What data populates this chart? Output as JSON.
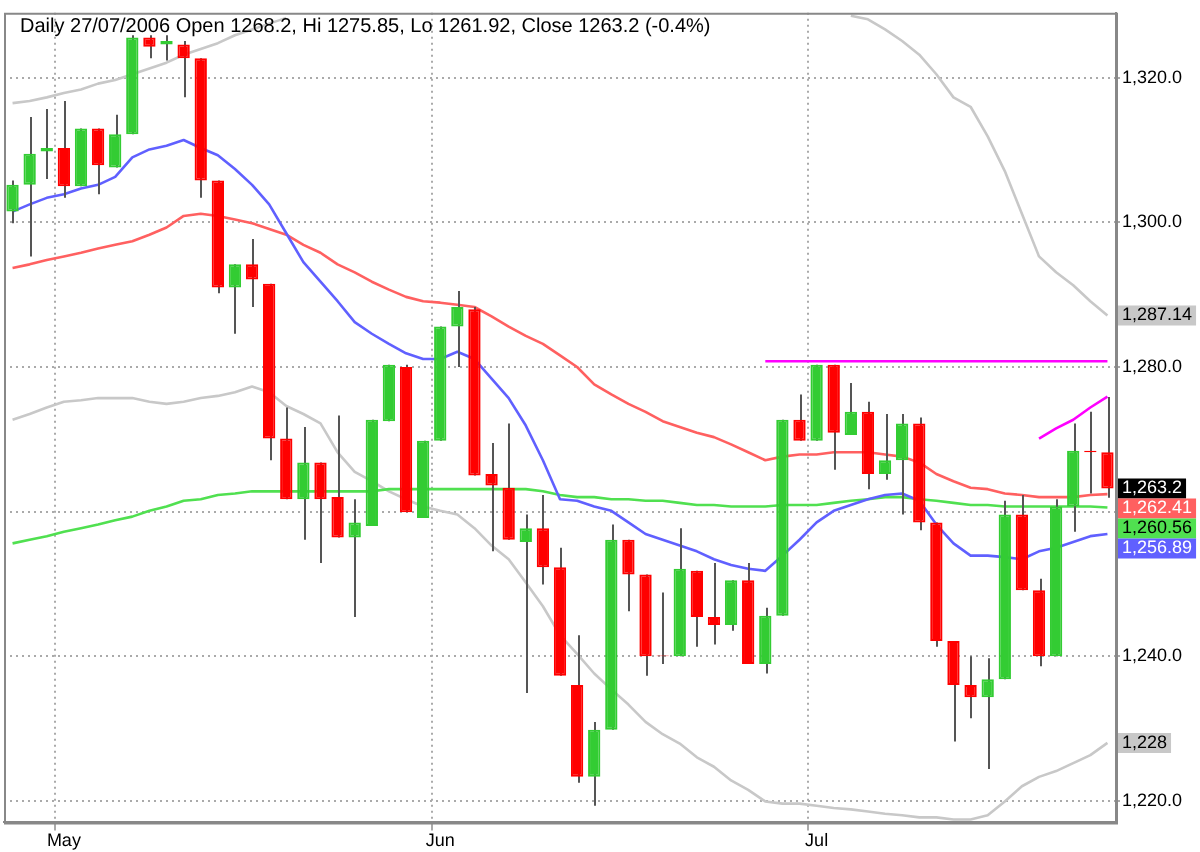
{
  "chart_data": {
    "type": "candlestick",
    "title": "Daily 27/07/2006 Open 1268.2, Hi 1275.85, Lo 1261.92, Close 1263.2 (-0.4%)",
    "categories": [
      null,
      null,
      null,
      "May",
      null,
      null,
      null,
      null,
      null,
      null,
      null,
      null,
      null,
      null,
      null,
      null,
      null,
      null,
      null,
      null,
      null,
      null,
      null,
      null,
      null,
      "Jun",
      null,
      null,
      null,
      null,
      null,
      null,
      null,
      null,
      null,
      null,
      null,
      null,
      null,
      null,
      null,
      null,
      null,
      null,
      null,
      null,
      null,
      "Jul",
      null,
      null,
      null,
      null,
      null,
      null,
      null,
      null,
      null,
      null,
      null,
      null,
      null,
      null,
      null,
      null,
      null
    ],
    "ohlc": [
      [
        1301.5,
        1305.8,
        1299.9,
        1305.2
      ],
      [
        1305.2,
        1314.6,
        1295.3,
        1309.5
      ],
      [
        1309.8,
        1315.7,
        1306.0,
        1310.3
      ],
      [
        1310.3,
        1316.8,
        1303.4,
        1305.0
      ],
      [
        1305.0,
        1313.0,
        1305.0,
        1313.0
      ],
      [
        1313.0,
        1313.0,
        1303.9,
        1307.9
      ],
      [
        1307.6,
        1314.9,
        1307.6,
        1312.2
      ],
      [
        1312.2,
        1325.9,
        1312.2,
        1325.6
      ],
      [
        1325.6,
        1325.9,
        1322.7,
        1324.3
      ],
      [
        1324.6,
        1325.9,
        1322.4,
        1325.1
      ],
      [
        1324.6,
        1325.1,
        1317.3,
        1322.7
      ],
      [
        1322.7,
        1322.7,
        1303.4,
        1305.8
      ],
      [
        1305.8,
        1305.8,
        1290.2,
        1291.0
      ],
      [
        1291.0,
        1294.2,
        1284.6,
        1294.2
      ],
      [
        1294.2,
        1297.7,
        1288.3,
        1292.1
      ],
      [
        1291.5,
        1291.5,
        1267.1,
        1270.1
      ],
      [
        1270.1,
        1274.4,
        1261.7,
        1261.7
      ],
      [
        1261.7,
        1271.7,
        1256.1,
        1266.8
      ],
      [
        1266.8,
        1266.8,
        1252.9,
        1261.7
      ],
      [
        1262.0,
        1273.3,
        1256.4,
        1256.4
      ],
      [
        1256.4,
        1261.7,
        1245.4,
        1258.5
      ],
      [
        1258.0,
        1272.7,
        1258.0,
        1272.7
      ],
      [
        1272.5,
        1280.3,
        1272.5,
        1280.3
      ],
      [
        1280.0,
        1280.3,
        1259.9,
        1259.9
      ],
      [
        1259.1,
        1269.8,
        1259.1,
        1269.8
      ],
      [
        1269.8,
        1285.6,
        1269.8,
        1285.6
      ],
      [
        1285.6,
        1290.5,
        1280.0,
        1288.3
      ],
      [
        1288.0,
        1288.3,
        1265.0,
        1265.0
      ],
      [
        1265.2,
        1269.5,
        1254.5,
        1263.6
      ],
      [
        1263.3,
        1272.2,
        1256.1,
        1256.1
      ],
      [
        1255.8,
        1259.6,
        1234.9,
        1257.7
      ],
      [
        1257.7,
        1262.3,
        1249.9,
        1252.3
      ],
      [
        1252.3,
        1255.0,
        1237.3,
        1237.3
      ],
      [
        1236.0,
        1242.9,
        1222.5,
        1223.3
      ],
      [
        1223.3,
        1230.9,
        1219.3,
        1229.8
      ],
      [
        1229.8,
        1258.2,
        1229.8,
        1256.1
      ],
      [
        1256.1,
        1256.1,
        1246.2,
        1251.3
      ],
      [
        1251.3,
        1251.3,
        1237.3,
        1240.0
      ],
      [
        1240.1,
        1248.8,
        1238.9,
        1240.0
      ],
      [
        1240.0,
        1257.7,
        1240.0,
        1252.1
      ],
      [
        1251.8,
        1251.8,
        1241.3,
        1245.4
      ],
      [
        1245.4,
        1252.9,
        1241.6,
        1244.3
      ],
      [
        1244.3,
        1250.5,
        1243.5,
        1250.5
      ],
      [
        1250.5,
        1252.9,
        1238.9,
        1238.9
      ],
      [
        1238.9,
        1246.7,
        1237.6,
        1245.6
      ],
      [
        1245.6,
        1272.7,
        1245.6,
        1272.7
      ],
      [
        1272.7,
        1276.2,
        1269.8,
        1269.8
      ],
      [
        1269.8,
        1280.3,
        1269.8,
        1280.3
      ],
      [
        1280.3,
        1280.3,
        1265.8,
        1270.9
      ],
      [
        1270.6,
        1277.8,
        1270.6,
        1273.8
      ],
      [
        1273.8,
        1275.2,
        1263.1,
        1265.2
      ],
      [
        1265.2,
        1273.5,
        1264.4,
        1267.1
      ],
      [
        1267.1,
        1273.5,
        1259.6,
        1272.2
      ],
      [
        1272.2,
        1273.0,
        1257.4,
        1258.5
      ],
      [
        1258.5,
        1258.5,
        1241.3,
        1242.1
      ],
      [
        1242.1,
        1242.1,
        1228.2,
        1236.0
      ],
      [
        1236.0,
        1240.0,
        1231.4,
        1234.3
      ],
      [
        1234.3,
        1239.7,
        1224.4,
        1236.8
      ],
      [
        1236.8,
        1261.5,
        1236.8,
        1259.6
      ],
      [
        1259.6,
        1262.3,
        1249.1,
        1249.1
      ],
      [
        1249.1,
        1250.7,
        1238.6,
        1240.0
      ],
      [
        1240.0,
        1261.7,
        1240.0,
        1260.7
      ],
      [
        1260.7,
        1272.2,
        1257.2,
        1268.4
      ],
      [
        1268.4,
        1273.8,
        1262.5,
        1268.2
      ],
      [
        1268.2,
        1275.85,
        1261.92,
        1263.2
      ]
    ],
    "colors": [
      "#33cc33",
      "#33cc33",
      "#33cc33",
      "#ff0000",
      "#33cc33",
      "#ff0000",
      "#33cc33",
      "#33cc33",
      "#ff0000",
      "#33cc33",
      "#ff0000",
      "#ff0000",
      "#ff0000",
      "#33cc33",
      "#ff0000",
      "#ff0000",
      "#ff0000",
      "#33cc33",
      "#ff0000",
      "#ff0000",
      "#33cc33",
      "#33cc33",
      "#33cc33",
      "#ff0000",
      "#33cc33",
      "#33cc33",
      "#33cc33",
      "#ff0000",
      "#ff0000",
      "#ff0000",
      "#33cc33",
      "#ff0000",
      "#ff0000",
      "#ff0000",
      "#33cc33",
      "#33cc33",
      "#ff0000",
      "#ff0000",
      "#ff0000",
      "#33cc33",
      "#ff0000",
      "#ff0000",
      "#33cc33",
      "#ff0000",
      "#33cc33",
      "#33cc33",
      "#ff0000",
      "#33cc33",
      "#ff0000",
      "#33cc33",
      "#ff0000",
      "#33cc33",
      "#33cc33",
      "#ff0000",
      "#ff0000",
      "#ff0000",
      "#ff0000",
      "#33cc33",
      "#33cc33",
      "#ff0000",
      "#ff0000",
      "#33cc33",
      "#33cc33",
      "#ff0000",
      "#ff0000"
    ],
    "series": [
      {
        "type": "line",
        "color": "#6060ff",
        "values": [
          1301.5,
          1302.5,
          1303.4,
          1303.9,
          1304.7,
          1305.2,
          1306.3,
          1309.0,
          1310.1,
          1310.6,
          1311.4,
          1310.3,
          1309.3,
          1307.4,
          1305.2,
          1302.5,
          1298.5,
          1294.5,
          1291.8,
          1289.1,
          1286.2,
          1284.6,
          1283.2,
          1281.9,
          1281.1,
          1281.1,
          1282.1,
          1281.1,
          1278.4,
          1275.7,
          1271.9,
          1267.1,
          1261.7,
          1261.5,
          1260.7,
          1260.1,
          1258.5,
          1256.9,
          1256.1,
          1255.3,
          1254.5,
          1253.4,
          1252.6,
          1252.1,
          1251.8,
          1253.9,
          1256.1,
          1258.5,
          1260.1,
          1260.9,
          1261.7,
          1262.3,
          1262.5,
          1261.5,
          1258.2,
          1255.6,
          1253.9,
          1253.9,
          1253.7,
          1253.4,
          1254.5,
          1255.0,
          1255.8,
          1256.6,
          1256.89
        ],
        "value_labels": [
          null,
          null,
          null,
          null,
          null,
          null,
          null,
          null,
          null,
          null,
          null,
          null,
          null,
          null,
          null,
          null,
          null,
          null,
          null,
          null,
          null,
          null,
          null,
          null,
          null,
          null,
          null,
          null,
          null,
          null,
          null,
          null,
          null,
          null,
          null,
          null,
          null,
          null,
          null,
          null,
          null,
          null,
          null,
          null,
          null,
          null,
          null,
          null,
          null,
          null,
          null,
          null,
          null,
          null,
          null,
          null,
          null,
          null,
          null,
          null,
          null,
          null,
          null,
          null,
          "1,256.89"
        ]
      },
      {
        "type": "line",
        "color": "#ff6060",
        "values": [
          1293.7,
          1294.2,
          1294.8,
          1295.3,
          1295.8,
          1296.4,
          1296.9,
          1297.4,
          1298.3,
          1299.3,
          1300.9,
          1301.2,
          1300.9,
          1300.4,
          1299.9,
          1299.1,
          1298.3,
          1296.9,
          1295.8,
          1294.2,
          1293.1,
          1291.8,
          1290.7,
          1289.7,
          1289.1,
          1288.9,
          1288.6,
          1288.3,
          1287.0,
          1285.6,
          1284.3,
          1283.2,
          1281.6,
          1280.0,
          1277.6,
          1276.2,
          1274.9,
          1273.8,
          1272.5,
          1271.7,
          1270.9,
          1270.3,
          1269.3,
          1268.2,
          1267.1,
          1267.6,
          1267.9,
          1267.9,
          1268.2,
          1268.2,
          1268.2,
          1267.9,
          1267.6,
          1266.8,
          1265.2,
          1264.2,
          1263.3,
          1263.1,
          1262.5,
          1262.3,
          1262.0,
          1262.0,
          1262.0,
          1262.3,
          1262.41
        ],
        "value_labels": [
          null,
          null,
          null,
          null,
          null,
          null,
          null,
          null,
          null,
          null,
          null,
          null,
          null,
          null,
          null,
          null,
          null,
          null,
          null,
          null,
          null,
          null,
          null,
          null,
          null,
          null,
          null,
          null,
          null,
          null,
          null,
          null,
          null,
          null,
          null,
          null,
          null,
          null,
          null,
          null,
          null,
          null,
          null,
          null,
          null,
          null,
          null,
          null,
          null,
          null,
          null,
          null,
          null,
          null,
          null,
          null,
          null,
          null,
          null,
          null,
          null,
          null,
          null,
          null,
          "1,262.41"
        ]
      },
      {
        "type": "line",
        "color": "#50e050",
        "values": [
          1255.6,
          1256.1,
          1256.6,
          1257.2,
          1257.7,
          1258.2,
          1258.8,
          1259.3,
          1260.1,
          1260.7,
          1261.5,
          1261.7,
          1262.3,
          1262.5,
          1262.8,
          1262.8,
          1262.8,
          1262.8,
          1262.8,
          1262.8,
          1262.8,
          1262.8,
          1263.1,
          1263.1,
          1263.1,
          1263.1,
          1263.1,
          1263.1,
          1263.1,
          1263.1,
          1263.1,
          1262.8,
          1262.3,
          1262.0,
          1262.0,
          1261.7,
          1261.7,
          1261.5,
          1261.5,
          1261.2,
          1260.9,
          1260.9,
          1260.7,
          1260.7,
          1260.7,
          1260.9,
          1260.9,
          1260.9,
          1261.2,
          1261.5,
          1261.7,
          1262.0,
          1262.0,
          1261.7,
          1261.5,
          1261.2,
          1260.9,
          1260.9,
          1260.7,
          1260.7,
          1260.7,
          1260.7,
          1260.7,
          1260.7,
          1260.56
        ],
        "value_labels": [
          null,
          null,
          null,
          null,
          null,
          null,
          null,
          null,
          null,
          null,
          null,
          null,
          null,
          null,
          null,
          null,
          null,
          null,
          null,
          null,
          null,
          null,
          null,
          null,
          null,
          null,
          null,
          null,
          null,
          null,
          null,
          null,
          null,
          null,
          null,
          null,
          null,
          null,
          null,
          null,
          null,
          null,
          null,
          null,
          null,
          null,
          null,
          null,
          null,
          null,
          null,
          null,
          null,
          null,
          null,
          null,
          null,
          null,
          null,
          null,
          null,
          null,
          null,
          null,
          "1,260.56"
        ]
      },
      {
        "type": "line",
        "color": "#c8c8c8",
        "values": [
          1316.5,
          1316.8,
          1317.3,
          1317.9,
          1318.4,
          1319.2,
          1319.7,
          1320.5,
          1321.3,
          1322.1,
          1323.2,
          1324.0,
          1324.8,
          1325.9,
          1326.7,
          1327.5,
          1328.3,
          null,
          null,
          null,
          null,
          null,
          null,
          null,
          null,
          null,
          null,
          null,
          null,
          null,
          null,
          null,
          null,
          null,
          null,
          null,
          null,
          null,
          null,
          null,
          null,
          null,
          null,
          null,
          null,
          null,
          null,
          null,
          null,
          1328.6,
          1328.1,
          1326.7,
          1325.1,
          1323.2,
          1320.5,
          1317.3,
          1316.0,
          1311.9,
          1307.1,
          1301.2,
          1295.3,
          1293.1,
          1291.3,
          1289.1,
          1287.14
        ],
        "value_labels": [
          null,
          null,
          null,
          null,
          null,
          null,
          null,
          null,
          null,
          null,
          null,
          null,
          null,
          null,
          null,
          null,
          null,
          null,
          null,
          null,
          null,
          null,
          null,
          null,
          null,
          null,
          null,
          null,
          null,
          null,
          null,
          null,
          null,
          null,
          null,
          null,
          null,
          null,
          null,
          null,
          null,
          null,
          null,
          null,
          null,
          null,
          null,
          null,
          null,
          null,
          null,
          null,
          null,
          null,
          null,
          null,
          null,
          null,
          null,
          null,
          null,
          null,
          null,
          null,
          "1,287.14"
        ]
      },
      {
        "type": "line",
        "color": "#c8c8c8",
        "values": [
          1272.7,
          1273.5,
          1274.4,
          1275.2,
          1275.4,
          1275.7,
          1275.7,
          1275.7,
          1275.2,
          1274.9,
          1275.2,
          1275.7,
          1276.0,
          1276.5,
          1277.3,
          1276.5,
          1274.6,
          1273.5,
          1272.2,
          1268.2,
          1265.5,
          1264.2,
          1262.8,
          1261.7,
          1260.7,
          1260.1,
          1259.6,
          1257.7,
          1255.3,
          1253.4,
          1250.2,
          1246.9,
          1242.9,
          1240.3,
          1237.6,
          1235.4,
          1233.3,
          1230.9,
          1229.2,
          1227.9,
          1226.0,
          1224.7,
          1222.8,
          1221.5,
          1219.9,
          1219.6,
          1219.6,
          1219.3,
          1219.0,
          1218.8,
          1218.5,
          1218.2,
          1218.0,
          1217.7,
          1217.7,
          1217.4,
          1217.4,
          1218.0,
          1219.9,
          1222.0,
          1223.3,
          1224.1,
          1225.2,
          1226.3,
          1228
        ],
        "value_labels": [
          null,
          null,
          null,
          null,
          null,
          null,
          null,
          null,
          null,
          null,
          null,
          null,
          null,
          null,
          null,
          null,
          null,
          null,
          null,
          null,
          null,
          null,
          null,
          null,
          null,
          null,
          null,
          null,
          null,
          null,
          null,
          null,
          null,
          null,
          null,
          null,
          null,
          null,
          null,
          null,
          null,
          null,
          null,
          null,
          null,
          null,
          null,
          null,
          null,
          null,
          null,
          null,
          null,
          null,
          null,
          null,
          null,
          null,
          null,
          null,
          null,
          null,
          null,
          null,
          "1,228"
        ]
      },
      {
        "type": "line",
        "color": "#ff00ff",
        "values": [
          null,
          null,
          null,
          null,
          null,
          null,
          null,
          null,
          null,
          null,
          null,
          null,
          null,
          null,
          null,
          null,
          null,
          null,
          null,
          null,
          null,
          null,
          null,
          null,
          null,
          null,
          null,
          null,
          null,
          null,
          null,
          null,
          null,
          null,
          null,
          null,
          null,
          null,
          null,
          null,
          null,
          null,
          null,
          null,
          1280.8,
          1280.8,
          1280.8,
          1280.8,
          1280.8,
          1280.8,
          1280.8,
          1280.8,
          1280.8,
          1280.8,
          1280.8,
          1280.8,
          1280.8,
          1280.8,
          1280.8,
          1280.8,
          1280.8,
          1280.8,
          1280.8,
          1280.8,
          1280.8
        ]
      },
      {
        "type": "line",
        "color": "#ff00ff",
        "values": [
          null,
          null,
          null,
          null,
          null,
          null,
          null,
          null,
          null,
          null,
          null,
          null,
          null,
          null,
          null,
          null,
          null,
          null,
          null,
          null,
          null,
          null,
          null,
          null,
          null,
          null,
          null,
          null,
          null,
          null,
          null,
          null,
          null,
          null,
          null,
          null,
          null,
          null,
          null,
          null,
          null,
          null,
          null,
          null,
          null,
          null,
          null,
          null,
          null,
          null,
          null,
          null,
          null,
          null,
          null,
          null,
          null,
          null,
          null,
          null,
          1270.1,
          1271.5,
          1272.7,
          1274.4,
          1275.9
        ]
      }
    ],
    "annotations": [
      "1,263.2"
    ],
    "ylim": [
      1217,
      1329
    ],
    "yticks": [
      {
        "value": 1220,
        "label": "1,220.0"
      },
      {
        "value": 1240,
        "label": "1,240.0"
      },
      {
        "value": 1260,
        "label": null
      },
      {
        "value": 1280,
        "label": "1,280.0"
      },
      {
        "value": 1300,
        "label": "1,300.0"
      },
      {
        "value": 1320,
        "label": "1,320.0"
      }
    ],
    "grid": true
  }
}
